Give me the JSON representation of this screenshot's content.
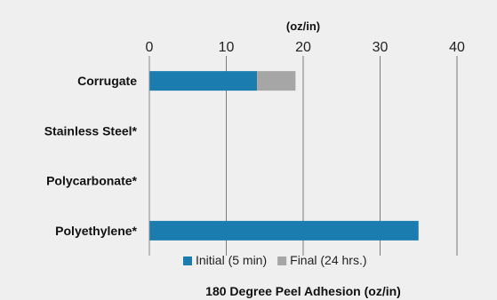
{
  "chart_data": {
    "type": "bar",
    "orientation": "horizontal",
    "stacked": true,
    "title": "180 Degree Peel Adhesion (oz/in)",
    "unit_label": "(oz/in)",
    "categories": [
      "Corrugate",
      "Stainless Steel*",
      "Polycarbonate*",
      "Polyethylene*"
    ],
    "series": [
      {
        "name": "Initial (5 min)",
        "color": "#1b7cb0",
        "values": [
          14,
          0,
          0,
          35
        ]
      },
      {
        "name": "Final (24 hrs.)",
        "color": "#a6a6a6",
        "values": [
          5,
          0,
          0,
          0
        ]
      }
    ],
    "xlim": [
      0,
      40
    ],
    "xticks": [
      0,
      10,
      20,
      30,
      40
    ],
    "x_axis_position": "top",
    "grid": true,
    "legend_position": "bottom"
  }
}
